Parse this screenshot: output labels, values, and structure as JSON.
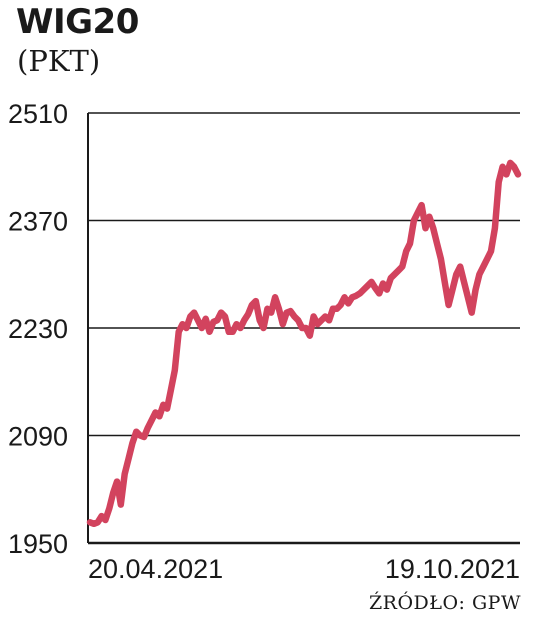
{
  "chart_data": {
    "type": "line",
    "title": "WIG20",
    "subtitle": "(PKT)",
    "source": "ŹRÓDŁO: GPW",
    "ylim": [
      1950,
      2510
    ],
    "yticks": [
      2510,
      2370,
      2230,
      2090,
      1950
    ],
    "xtick_labels": [
      "20.04.2021",
      "19.10.2021"
    ],
    "grid": true,
    "line_color": "#d2435e",
    "series": [
      {
        "values": [
          1977,
          1975,
          1977,
          1985,
          1980,
          1995,
          2015,
          2030,
          2000,
          2040,
          2060,
          2080,
          2095,
          2090,
          2088,
          2100,
          2110,
          2120,
          2115,
          2130,
          2125,
          2150,
          2175,
          2225,
          2235,
          2230,
          2245,
          2250,
          2240,
          2230,
          2242,
          2225,
          2238,
          2240,
          2250,
          2245,
          2225,
          2225,
          2235,
          2230,
          2240,
          2248,
          2260,
          2265,
          2240,
          2230,
          2255,
          2250,
          2270,
          2255,
          2235,
          2250,
          2252,
          2245,
          2240,
          2230,
          2230,
          2220,
          2245,
          2235,
          2240,
          2245,
          2240,
          2255,
          2255,
          2260,
          2270,
          2262,
          2270,
          2272,
          2275,
          2280,
          2285,
          2290,
          2282,
          2275,
          2288,
          2280,
          2295,
          2300,
          2305,
          2310,
          2330,
          2340,
          2370,
          2380,
          2390,
          2360,
          2375,
          2360,
          2340,
          2320,
          2290,
          2260,
          2280,
          2300,
          2310,
          2290,
          2270,
          2250,
          2280,
          2300,
          2310,
          2320,
          2330,
          2360,
          2420,
          2440,
          2430,
          2445,
          2440,
          2430
        ]
      }
    ]
  }
}
